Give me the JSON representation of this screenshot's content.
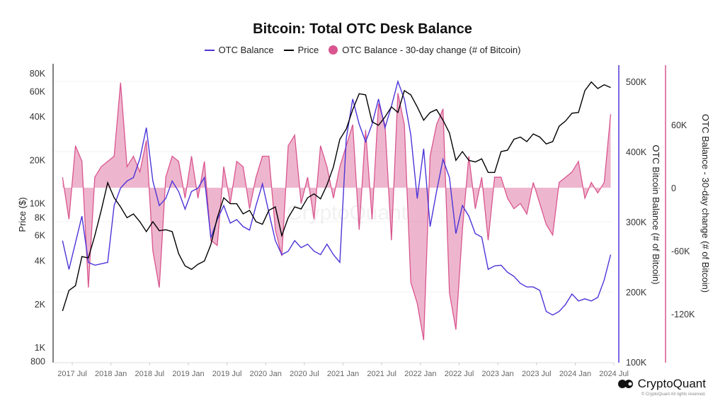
{
  "chart_data": {
    "type": "line",
    "title": "Bitcoin: Total OTC Desk Balance",
    "legend": {
      "placement": "top-center",
      "entries": [
        "OTC Balance",
        "Price",
        "OTC Balance - 30-day change (# of Bitcoin)"
      ]
    },
    "colors": {
      "otc_balance": "#4b35d8",
      "price": "#000000",
      "change": "#d9558f",
      "change_fill": "#e07aa6"
    },
    "x_ticks": [
      "2017 Jul",
      "2018 Jan",
      "2018 Jul",
      "2019 Jan",
      "2019 Jul",
      "2020 Jan",
      "2020 Jul",
      "2021 Jan",
      "2021 Jul",
      "2022 Jan",
      "2022 Jul",
      "2023 Jan",
      "2023 Jul",
      "2024 Jan",
      "2024 Jul"
    ],
    "y_left": {
      "label": "Price ($)",
      "scale": "log",
      "range": [
        800,
        88000
      ],
      "ticks": [
        "80K",
        "60K",
        "40K",
        "20K",
        "10K",
        "8K",
        "6K",
        "4K",
        "2K",
        "1K",
        "800"
      ],
      "tick_values": [
        80000,
        60000,
        40000,
        20000,
        10000,
        8000,
        6000,
        4000,
        2000,
        1000,
        800
      ]
    },
    "y_right1": {
      "label": "OTC Bitcoin Balance (# of Bitcoin)",
      "scale": "linear",
      "range": [
        100000,
        520000
      ],
      "ticks": [
        "500K",
        "400K",
        "300K",
        "200K",
        "100K"
      ],
      "tick_values": [
        500000,
        400000,
        300000,
        200000,
        100000
      ]
    },
    "y_right2": {
      "label": "OTC Balance - 30-day change (# of Bitcoin)",
      "scale": "linear",
      "range": [
        -166000,
        114000
      ],
      "ticks": [
        "60K",
        "0",
        "-60K",
        "-120K"
      ],
      "tick_values": [
        60000,
        0,
        -60000,
        -120000
      ]
    },
    "grid": "horizontal",
    "x": [
      "2017-05",
      "2017-06",
      "2017-07",
      "2017-08",
      "2017-09",
      "2017-10",
      "2017-11",
      "2017-12",
      "2018-01",
      "2018-02",
      "2018-03",
      "2018-04",
      "2018-05",
      "2018-06",
      "2018-07",
      "2018-08",
      "2018-09",
      "2018-10",
      "2018-11",
      "2018-12",
      "2019-01",
      "2019-02",
      "2019-03",
      "2019-04",
      "2019-05",
      "2019-06",
      "2019-07",
      "2019-08",
      "2019-09",
      "2019-10",
      "2019-11",
      "2019-12",
      "2020-01",
      "2020-02",
      "2020-03",
      "2020-04",
      "2020-05",
      "2020-06",
      "2020-07",
      "2020-08",
      "2020-09",
      "2020-10",
      "2020-11",
      "2020-12",
      "2021-01",
      "2021-02",
      "2021-03",
      "2021-04",
      "2021-05",
      "2021-06",
      "2021-07",
      "2021-08",
      "2021-09",
      "2021-10",
      "2021-11",
      "2021-12",
      "2022-01",
      "2022-02",
      "2022-03",
      "2022-04",
      "2022-05",
      "2022-06",
      "2022-07",
      "2022-08",
      "2022-09",
      "2022-10",
      "2022-11",
      "2022-12",
      "2023-01",
      "2023-02",
      "2023-03",
      "2023-04",
      "2023-05",
      "2023-06",
      "2023-07",
      "2023-08",
      "2023-09",
      "2023-10",
      "2023-11",
      "2023-12",
      "2024-01",
      "2024-02",
      "2024-03",
      "2024-04",
      "2024-05",
      "2024-06"
    ],
    "series": [
      {
        "name": "OTC Balance",
        "axis": "y_right1",
        "values": [
          273000,
          232000,
          270000,
          308000,
          242000,
          238000,
          240000,
          242000,
          323000,
          348000,
          358000,
          363000,
          390000,
          434000,
          358000,
          323000,
          333000,
          358000,
          343000,
          318000,
          343000,
          348000,
          363000,
          277000,
          303000,
          323000,
          298000,
          303000,
          293000,
          288000,
          323000,
          354000,
          313000,
          273000,
          253000,
          258000,
          273000,
          263000,
          268000,
          258000,
          253000,
          268000,
          253000,
          242000,
          419000,
          475000,
          439000,
          414000,
          439000,
          475000,
          434000,
          465000,
          500000,
          475000,
          424000,
          333000,
          404000,
          293000,
          343000,
          389000,
          363000,
          283000,
          323000,
          308000,
          283000,
          278000,
          232000,
          237000,
          238000,
          228000,
          222000,
          212000,
          207000,
          207000,
          202000,
          172000,
          167000,
          172000,
          182000,
          197000,
          187000,
          190000,
          187000,
          192000,
          217000,
          253000
        ]
      },
      {
        "name": "Price",
        "axis": "y_left",
        "values": [
          1800,
          2500,
          2700,
          4300,
          4200,
          6000,
          9000,
          14000,
          11000,
          9500,
          8000,
          8500,
          7500,
          6400,
          7500,
          6500,
          6600,
          6400,
          4500,
          3700,
          3500,
          3800,
          4000,
          5200,
          8000,
          11000,
          10000,
          10000,
          8500,
          9000,
          7500,
          7200,
          9000,
          9500,
          6000,
          8000,
          9500,
          9200,
          11000,
          11700,
          10800,
          13500,
          18000,
          28000,
          33000,
          45000,
          58000,
          57000,
          37000,
          35000,
          40000,
          47000,
          43000,
          61000,
          57000,
          47000,
          38000,
          43000,
          45000,
          38000,
          31000,
          20000,
          23000,
          20000,
          19500,
          20500,
          16500,
          16500,
          23000,
          23500,
          28000,
          29000,
          27000,
          30500,
          29000,
          26000,
          27000,
          34500,
          37500,
          42500,
          43000,
          61000,
          70000,
          63000,
          67000,
          64000
        ]
      },
      {
        "name": "OTC Balance - 30-day change (# of Bitcoin)",
        "axis": "y_right2",
        "values": [
          10000,
          -30000,
          40000,
          25000,
          -95000,
          10000,
          20000,
          25000,
          30000,
          100000,
          20000,
          30000,
          15000,
          45000,
          -60000,
          -95000,
          10000,
          30000,
          25000,
          -10000,
          30000,
          -10000,
          25000,
          -50000,
          -55000,
          20000,
          -15000,
          25000,
          20000,
          -20000,
          10000,
          30000,
          30000,
          -40000,
          -65000,
          40000,
          50000,
          -15000,
          10000,
          -30000,
          40000,
          20000,
          -10000,
          20000,
          40000,
          60000,
          -40000,
          55000,
          -30000,
          80000,
          60000,
          -50000,
          90000,
          60000,
          -90000,
          -110000,
          -145000,
          30000,
          60000,
          75000,
          -100000,
          -135000,
          -40000,
          30000,
          -20000,
          10000,
          -50000,
          10000,
          10000,
          -10000,
          -20000,
          -15000,
          -25000,
          5000,
          -15000,
          -35000,
          -45000,
          5000,
          10000,
          15000,
          25000,
          -10000,
          5000,
          -5000,
          5000,
          70000
        ]
      }
    ]
  },
  "watermark": "CryptoQuant",
  "brand": {
    "name": "CryptoQuant",
    "copyright": "© CryptoQuant All rights reserved."
  }
}
